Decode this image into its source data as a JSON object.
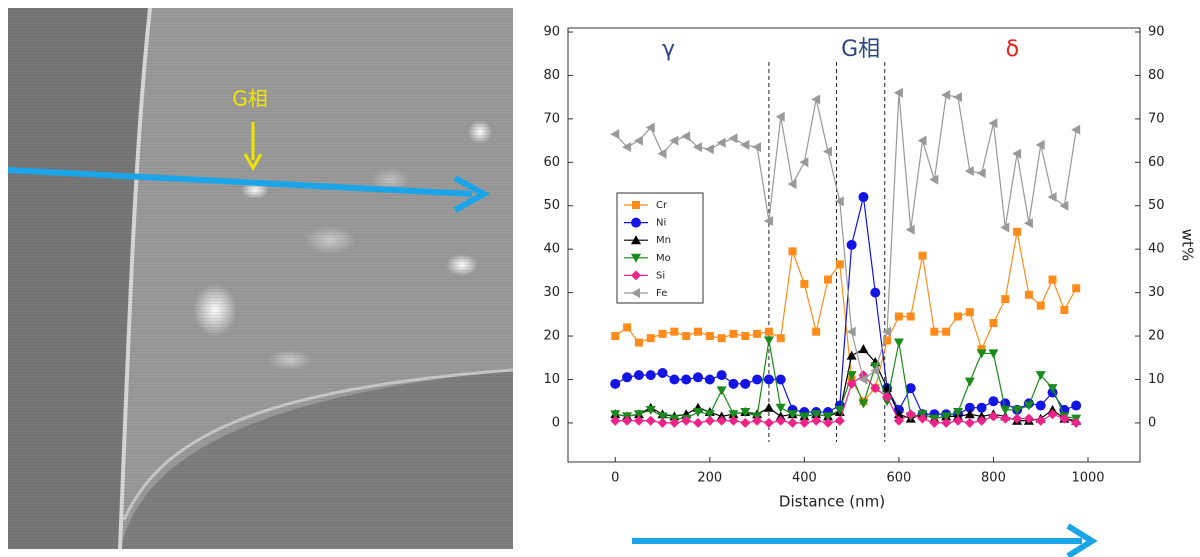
{
  "image_annotation": {
    "label": "G相"
  },
  "chart_data": {
    "type": "line",
    "x_label": "Distance (nm)",
    "y2_label": "wt%",
    "xlim": [
      -100,
      1110
    ],
    "xticks": [
      0,
      200,
      400,
      600,
      800,
      1000
    ],
    "ylim": [
      -9,
      90
    ],
    "yticks": [
      0,
      10,
      20,
      30,
      40,
      50,
      60,
      70,
      80,
      90
    ],
    "y2lim": [
      -9,
      90
    ],
    "y2ticks": [
      0,
      10,
      20,
      30,
      40,
      50,
      60,
      70,
      80,
      90
    ],
    "boundaries": [
      325,
      468,
      570
    ],
    "regions": [
      {
        "label": "γ",
        "color": "#2a4684"
      },
      {
        "label": "G相",
        "color": "#2a4684"
      },
      {
        "label": "δ",
        "color": "#e8201e"
      }
    ],
    "x": [
      0,
      25,
      50,
      75,
      100,
      125,
      150,
      175,
      200,
      225,
      250,
      275,
      300,
      325,
      350,
      375,
      400,
      425,
      450,
      475,
      500,
      525,
      550,
      575,
      600,
      625,
      650,
      675,
      700,
      725,
      750,
      775,
      800,
      825,
      850,
      875,
      900,
      925,
      950,
      975
    ],
    "series": [
      {
        "name": "Cr",
        "color": "#ff8c1a",
        "marker": "square",
        "values": [
          20,
          22,
          18.5,
          19.5,
          20.5,
          21,
          20,
          21,
          20,
          19.5,
          20.5,
          20,
          20.5,
          21,
          19.5,
          39.5,
          32,
          21,
          33,
          36.5,
          10,
          5,
          8,
          19,
          24.5,
          24.5,
          38.5,
          21,
          21,
          24.5,
          25.5,
          17,
          23,
          28.5,
          44,
          29.5,
          27,
          33,
          26,
          31
        ]
      },
      {
        "name": "Ni",
        "color": "#1414e6",
        "marker": "circle",
        "values": [
          9,
          10.5,
          11,
          11,
          11.5,
          10,
          10,
          10.5,
          10,
          11,
          9,
          9,
          10,
          10,
          10,
          3,
          2.5,
          2.5,
          2.5,
          4,
          41,
          52,
          30,
          8,
          3,
          8,
          2,
          2,
          2,
          2,
          3.5,
          3.5,
          5,
          4.5,
          3,
          4.5,
          4,
          7,
          3,
          4
        ]
      },
      {
        "name": "Mn",
        "color": "#000000",
        "marker": "triangle-up",
        "values": [
          2,
          1.5,
          2,
          3.5,
          2,
          1.5,
          2,
          3.5,
          2.5,
          1.5,
          2,
          2.5,
          2,
          3.5,
          1.5,
          2,
          1.5,
          2,
          1.5,
          2.5,
          15.5,
          17,
          14,
          8,
          2,
          1,
          2,
          1,
          1.5,
          1.5,
          2,
          1.5,
          2,
          1.5,
          0.5,
          0.5,
          1,
          3,
          1,
          0.5
        ]
      },
      {
        "name": "Mo",
        "color": "#1a8a1a",
        "marker": "triangle-down",
        "values": [
          2,
          1.5,
          2,
          3,
          1.5,
          1,
          1,
          2.5,
          2,
          7.5,
          2,
          2.5,
          1.5,
          19,
          3.5,
          2,
          1.5,
          2,
          1.5,
          3,
          11,
          4.5,
          13,
          5,
          18.5,
          1.5,
          2,
          1,
          1.5,
          2.5,
          9.5,
          16,
          16,
          3,
          3,
          4,
          11,
          8,
          1.5,
          1
        ]
      },
      {
        "name": "Si",
        "color": "#ee2288",
        "marker": "diamond",
        "values": [
          0.5,
          0.5,
          0.5,
          0.5,
          0,
          0,
          0.5,
          0,
          0.5,
          0.5,
          0.5,
          0,
          0.5,
          0,
          0.5,
          0,
          0,
          0.5,
          0,
          0.5,
          9,
          11,
          8,
          6,
          0.5,
          2,
          1,
          0,
          0,
          0.5,
          0,
          0.5,
          1.5,
          1,
          1,
          1,
          0.5,
          2,
          1,
          0
        ]
      },
      {
        "name": "Fe",
        "color": "#999999",
        "marker": "triangle-left",
        "values": [
          66.5,
          63.5,
          65,
          68,
          62,
          65,
          66,
          63.5,
          63,
          64.5,
          65.5,
          64,
          63.5,
          46.5,
          70.5,
          55,
          60,
          74.5,
          62.5,
          51,
          21,
          10,
          12,
          21,
          76,
          44.5,
          65,
          56,
          75.5,
          75,
          58,
          57.5,
          69,
          45,
          62,
          46,
          64,
          52,
          50,
          67.5
        ]
      }
    ]
  }
}
